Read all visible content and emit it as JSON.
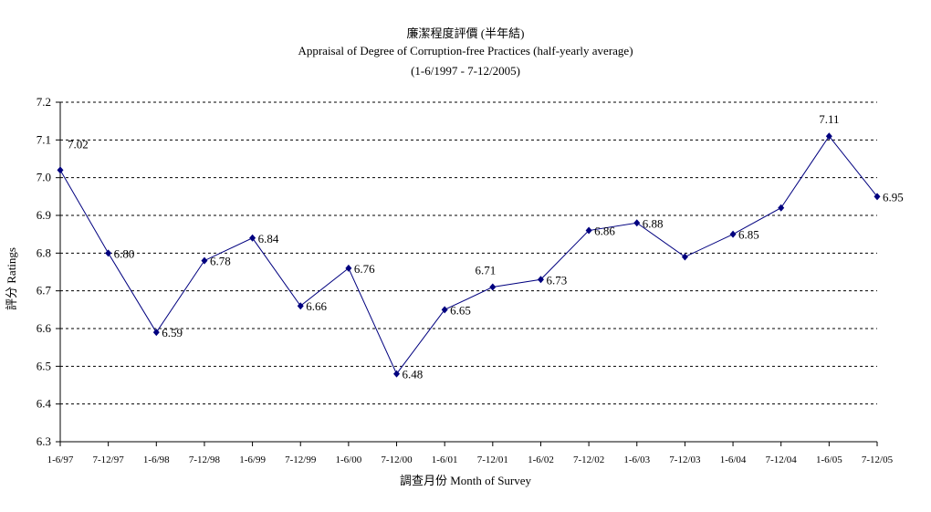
{
  "chart_data": {
    "type": "line",
    "title": "廉潔程度評價 (半年結)",
    "subtitle": "Appraisal of Degree of Corruption-free Practices (half-yearly average)",
    "period": "(1-6/1997 - 7-12/2005)",
    "xlabel": "調查月份 Month of Survey",
    "ylabel": "評分 Ratings",
    "ylim": [
      6.3,
      7.2
    ],
    "yticks": [
      "6.3",
      "6.4",
      "6.5",
      "6.6",
      "6.7",
      "6.8",
      "6.9",
      "7.0",
      "7.1",
      "7.2"
    ],
    "categories": [
      "1-6/97",
      "7-12/97",
      "1-6/98",
      "7-12/98",
      "1-6/99",
      "7-12/99",
      "1-6/00",
      "7-12/00",
      "1-6/01",
      "7-12/01",
      "1-6/02",
      "7-12/02",
      "1-6/03",
      "7-12/03",
      "1-6/04",
      "7-12/04",
      "1-6/05",
      "7-12/05"
    ],
    "values": [
      7.02,
      6.8,
      6.59,
      6.78,
      6.84,
      6.66,
      6.76,
      6.48,
      6.65,
      6.71,
      6.73,
      6.86,
      6.88,
      6.79,
      6.85,
      6.92,
      7.11,
      6.95
    ],
    "data_labels": [
      "7.02",
      "6.80",
      "6.59",
      "6.78",
      "6.84",
      "6.66",
      "6.76",
      "6.48",
      "6.65",
      "6.71",
      "6.73",
      "6.86",
      "6.88",
      "",
      "6.85",
      "",
      "7.11",
      "6.95"
    ],
    "grid": "horizontal dashed",
    "legend": "none",
    "line_color": "#00007f"
  }
}
